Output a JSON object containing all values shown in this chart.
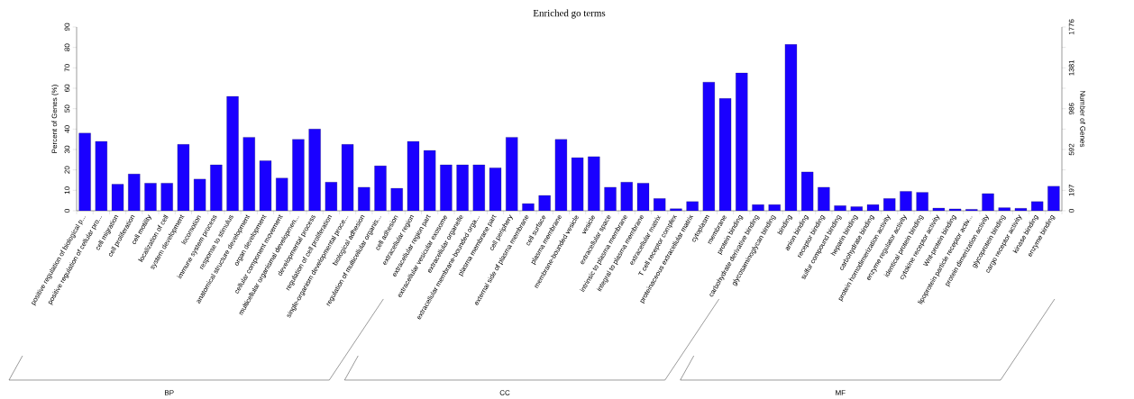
{
  "chart_data": {
    "type": "bar",
    "title": "Enriched go terms",
    "ylabel": "Percent of Genes (%)",
    "y2label": "Number of Genes",
    "categories": [
      "positive regulation of biological p...",
      "positive regulation of cellular pro...",
      "cell migration",
      "cell proliferation",
      "cell motility",
      "localization of cell",
      "system development",
      "locomotion",
      "immune system process",
      "response to stimulus",
      "anatomical structure development",
      "organ development",
      "cellular component movement",
      "multicellular organismal developmen...",
      "developmental process",
      "regulation of cell proliferation",
      "single-organism developmental proce...",
      "biological adhesion",
      "regulation of multicellular organis...",
      "cell adhesion",
      "extracellular region",
      "extracellular region part",
      "extracellular vesicular exosome",
      "extracellular organelle",
      "extracellular membrane-bounded orga...",
      "plasma membrane part",
      "cell periphery",
      "external side of plasma membrane",
      "cell surface",
      "plasma membrane",
      "membrane-bounded vesicle",
      "vesicle",
      "extracellular space",
      "intrinsic to plasma membrane",
      "integral to plasma membrane",
      "extracellular matrix",
      "T cell receptor complex",
      "proteinaceous extracellular matrix",
      "cytoplasm",
      "membrane",
      "protein binding",
      "carbohydrate derivative binding",
      "glycosaminoglycan binding",
      "binding",
      "anion binding",
      "receptor binding",
      "sulfur compound binding",
      "heparin binding",
      "carbohydrate binding",
      "protein homodimerization activity",
      "enzyme regulator activity",
      "identical protein binding",
      "cytokine receptor activity",
      "Wnt-protein binding",
      "lipoprotein particle receptor activ...",
      "protein dimerization activity",
      "glycoprotein binding",
      "cargo receptor activity",
      "kinase binding",
      "enzyme binding"
    ],
    "values": [
      38,
      34,
      13,
      18,
      13.5,
      13.5,
      32.5,
      15.5,
      22.5,
      56,
      36,
      24.5,
      16,
      35,
      40,
      14,
      32.5,
      11.5,
      22,
      11,
      34,
      29.5,
      22.5,
      22.5,
      22.5,
      21,
      36,
      3.5,
      7.5,
      35,
      26,
      26.5,
      11.5,
      14,
      13.5,
      6,
      1,
      4.5,
      63,
      55,
      67.5,
      3,
      3,
      81.5,
      19,
      11.5,
      2.5,
      2,
      3,
      6,
      9.5,
      9,
      1.3,
      0.9,
      0.7,
      8.4,
      1.5,
      1.2,
      4.5,
      12
    ],
    "color": "#1a00ff",
    "ylim": [
      0,
      90
    ],
    "yticks": [
      0,
      10,
      20,
      30,
      40,
      50,
      60,
      70,
      80,
      90
    ],
    "y2lim": [
      0,
      1776
    ],
    "y2ticks": [
      0,
      197,
      {
        "value": 395,
        "label": null
      },
      592,
      {
        "value": 789,
        "label": null
      },
      986,
      {
        "value": 1184,
        "label": null
      },
      1381,
      {
        "value": 1579,
        "label": null
      },
      1776
    ],
    "annotations": [
      "BP",
      "CC",
      "MF"
    ]
  }
}
